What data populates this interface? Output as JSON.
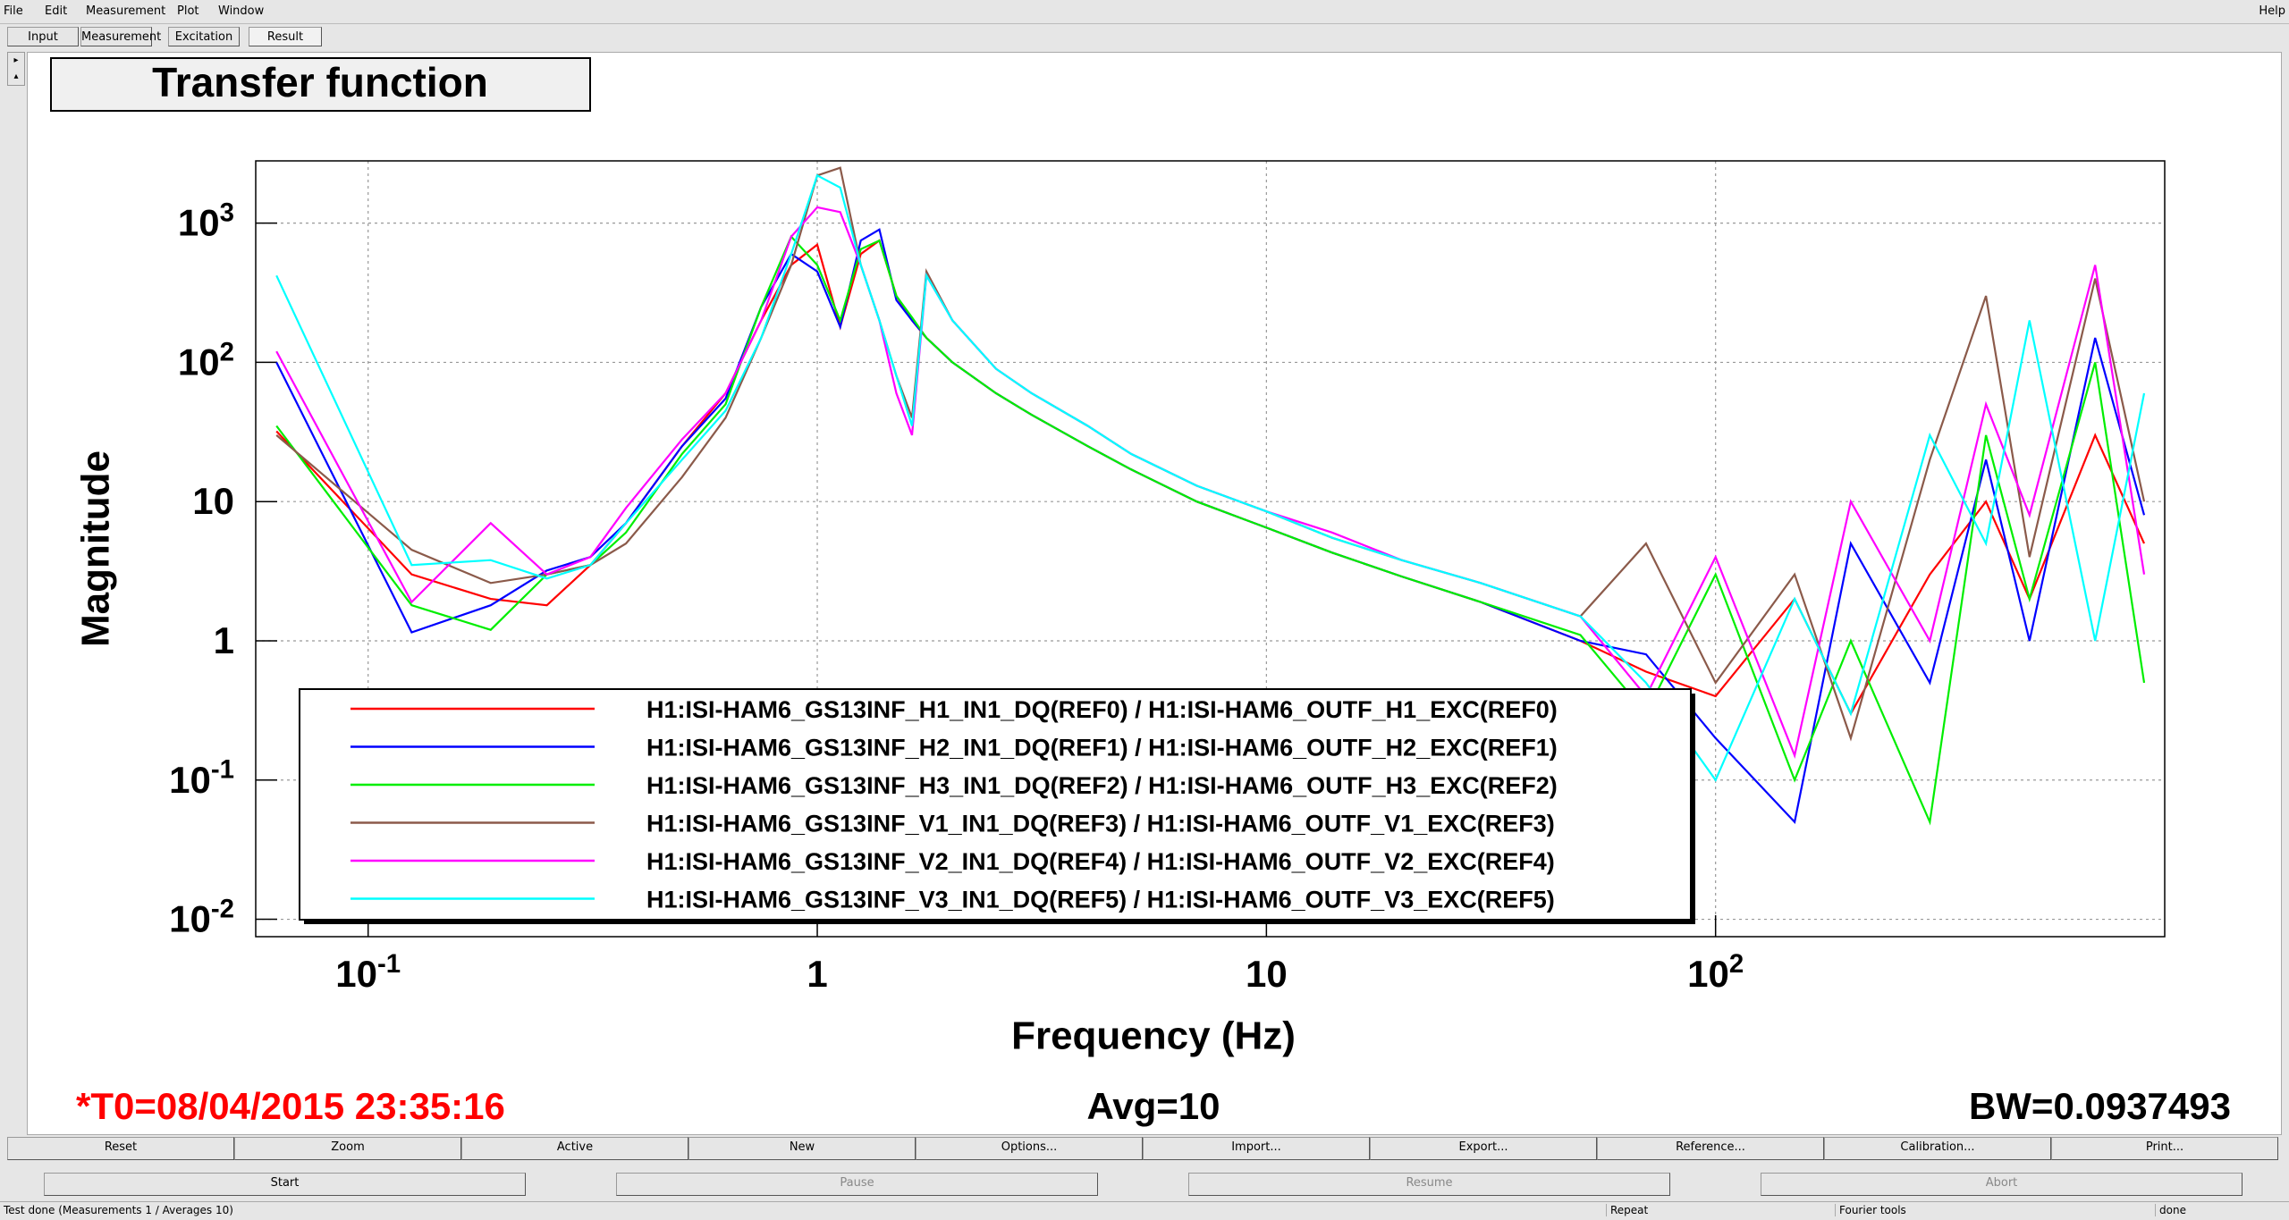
{
  "menu": [
    "File",
    "Edit",
    "Measurement",
    "Plot",
    "Window"
  ],
  "help": "Help",
  "tabs": [
    "Input",
    "Measurement",
    "Excitation",
    "Result"
  ],
  "chart_data": {
    "type": "line",
    "title": "Transfer function",
    "x_label": "Frequency (Hz)",
    "y_label": "Magnitude",
    "x": [
      0.0625,
      0.125,
      0.1875,
      0.25,
      0.3125,
      0.375,
      0.5,
      0.625,
      0.75,
      0.875,
      1.0,
      1.125,
      1.25,
      1.375,
      1.5,
      1.625,
      1.75,
      2,
      2.5,
      3,
      4,
      5,
      7,
      10,
      14,
      20,
      30,
      50,
      70,
      100,
      150,
      200,
      300,
      400,
      500,
      700,
      900
    ],
    "series": [
      {
        "name": "H1:ISI-HAM6_GS13INF_H1_IN1_DQ(REF0) / H1:ISI-HAM6_OUTF_H1_EXC(REF0)",
        "color": "#ff0000",
        "values": [
          32,
          3,
          2,
          1.8,
          3.5,
          7,
          25,
          60,
          200,
          500,
          700,
          180,
          600,
          750,
          300,
          200,
          150,
          100,
          60,
          42,
          25,
          17,
          10,
          6.5,
          4.3,
          2.9,
          1.9,
          1.0,
          0.6,
          0.4,
          2,
          0.3,
          3,
          10,
          2,
          30,
          5
        ]
      },
      {
        "name": "H1:ISI-HAM6_GS13INF_H2_IN1_DQ(REF1) / H1:ISI-HAM6_OUTF_H2_EXC(REF1)",
        "color": "#0000ff",
        "values": [
          100,
          1.15,
          1.8,
          3.2,
          4,
          7,
          25,
          55,
          250,
          600,
          450,
          180,
          750,
          900,
          280,
          200,
          150,
          100,
          60,
          42,
          25,
          17,
          10,
          6.5,
          4.3,
          2.9,
          1.9,
          1.0,
          0.8,
          0.2,
          0.05,
          5,
          0.5,
          20,
          1,
          150,
          8
        ]
      },
      {
        "name": "H1:ISI-HAM6_GS13INF_H3_IN1_DQ(REF2) / H1:ISI-HAM6_OUTF_H3_EXC(REF2)",
        "color": "#00ee00",
        "values": [
          35,
          1.8,
          1.2,
          3,
          3.5,
          6,
          22,
          50,
          250,
          800,
          500,
          200,
          650,
          750,
          300,
          210,
          150,
          100,
          60,
          42,
          25,
          17,
          10,
          6.5,
          4.3,
          2.9,
          1.9,
          1.1,
          0.3,
          3,
          0.1,
          1,
          0.05,
          30,
          2,
          100,
          0.5
        ]
      },
      {
        "name": "H1:ISI-HAM6_GS13INF_V1_IN1_DQ(REF3) / H1:ISI-HAM6_OUTF_V1_EXC(REF3)",
        "color": "#8b5a4a",
        "values": [
          30,
          4.5,
          2.6,
          3,
          3.5,
          5,
          15,
          40,
          150,
          500,
          2200,
          2500,
          500,
          200,
          80,
          40,
          450,
          200,
          90,
          60,
          35,
          22,
          13,
          8.5,
          5.5,
          3.8,
          2.6,
          1.5,
          5,
          0.5,
          3,
          0.2,
          20,
          300,
          4,
          400,
          10
        ]
      },
      {
        "name": "H1:ISI-HAM6_GS13INF_V2_IN1_DQ(REF4) / H1:ISI-HAM6_OUTF_V2_EXC(REF4)",
        "color": "#ff00ff",
        "values": [
          120,
          1.9,
          7,
          3,
          4,
          9,
          28,
          60,
          200,
          800,
          1300,
          1200,
          500,
          200,
          60,
          30,
          420,
          200,
          90,
          60,
          35,
          22,
          13,
          8.5,
          6,
          3.8,
          2.6,
          1.5,
          0.4,
          4,
          0.15,
          10,
          1,
          50,
          8,
          500,
          3
        ]
      },
      {
        "name": "H1:ISI-HAM6_GS13INF_V3_IN1_DQ(REF5) / H1:ISI-HAM6_OUTF_V3_EXC(REF5)",
        "color": "#00ffff",
        "values": [
          420,
          3.5,
          3.8,
          2.8,
          3.5,
          7,
          20,
          45,
          150,
          600,
          2200,
          1800,
          500,
          200,
          80,
          35,
          420,
          200,
          90,
          60,
          35,
          22,
          13,
          8.5,
          5.5,
          3.8,
          2.6,
          1.5,
          0.5,
          0.1,
          2,
          0.3,
          30,
          5,
          200,
          1,
          60
        ]
      }
    ],
    "xlog": true,
    "ylog": true,
    "xlim": [
      0.0562,
      1000
    ],
    "ylim": [
      0.0075,
      2800
    ],
    "xticks": [
      {
        "value": 0.1,
        "label": "10^-1"
      },
      1,
      10,
      {
        "value": 100,
        "label": "10^2"
      }
    ],
    "yticks": [
      {
        "value": 0.01,
        "label": "10^-2"
      },
      {
        "value": 0.1,
        "label": "10^-1"
      },
      1,
      10,
      {
        "value": 100,
        "label": "10^2"
      },
      {
        "value": 1000,
        "label": "10^3"
      }
    ],
    "grid": true,
    "legend": "lower left"
  },
  "footer": {
    "t0": "*T0=08/04/2015 23:35:16",
    "avg": "Avg=10",
    "bw": "BW=0.0937493"
  },
  "buttons": [
    "Reset",
    "Zoom",
    "Active",
    "New",
    "Options...",
    "Import...",
    "Export...",
    "Reference...",
    "Calibration...",
    "Print..."
  ],
  "controls": [
    "Start",
    "Pause",
    "Resume",
    "Abort"
  ],
  "status": [
    "Test done (Measurements 1 / Averages 10)",
    "Repeat",
    "Fourier tools",
    "done"
  ]
}
